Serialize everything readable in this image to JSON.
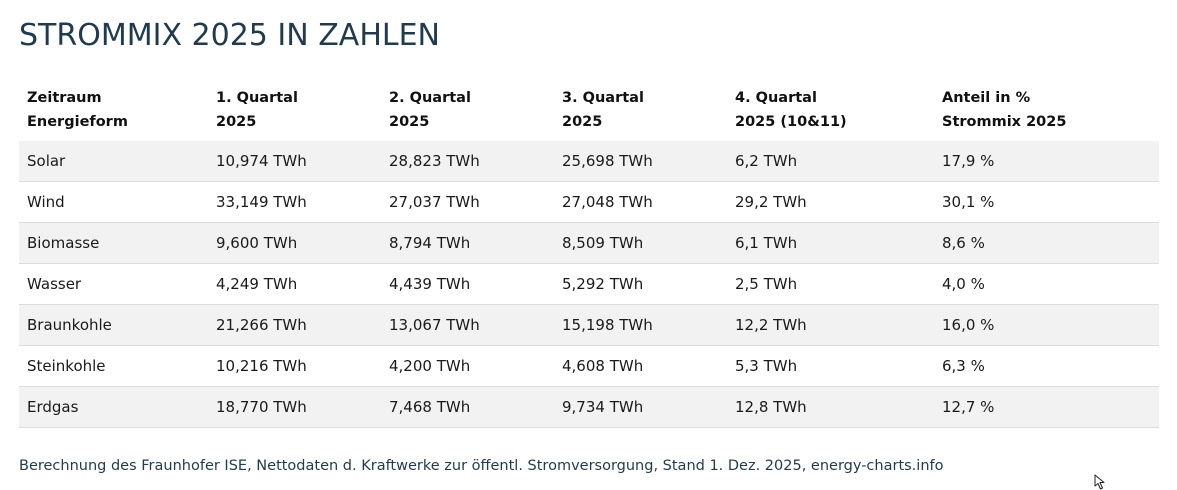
{
  "title": "STROMMIX 2025 IN ZAHLEN",
  "table": {
    "headers": [
      {
        "line1": "Zeitraum",
        "line2": "Energieform"
      },
      {
        "line1": "1. Quartal",
        "line2": "2025"
      },
      {
        "line1": "2. Quartal",
        "line2": "2025"
      },
      {
        "line1": "3. Quartal",
        "line2": "2025"
      },
      {
        "line1": "4. Quartal",
        "line2": "2025 (10&11)"
      },
      {
        "line1": "Anteil in %",
        "line2": "Strommix 2025"
      }
    ],
    "rows": [
      [
        "Solar",
        "10,974 TWh",
        "28,823 TWh",
        "25,698 TWh",
        "6,2 TWh",
        "17,9 %"
      ],
      [
        "Wind",
        "33,149 TWh",
        "27,037 TWh",
        "27,048 TWh",
        "29,2 TWh",
        "30,1 %"
      ],
      [
        "Biomasse",
        "9,600 TWh",
        "8,794 TWh",
        "8,509 TWh",
        "6,1 TWh",
        "8,6 %"
      ],
      [
        "Wasser",
        "4,249 TWh",
        "4,439 TWh",
        "5,292 TWh",
        "2,5 TWh",
        "4,0 %"
      ],
      [
        "Braunkohle",
        "21,266 TWh",
        "13,067 TWh",
        "15,198 TWh",
        "12,2 TWh",
        "16,0 %"
      ],
      [
        "Steinkohle",
        "10,216 TWh",
        "4,200 TWh",
        "4,608 TWh",
        "5,3 TWh",
        "6,3 %"
      ],
      [
        "Erdgas",
        "18,770 TWh",
        "7,468 TWh",
        "9,734 TWh",
        "12,8 TWh",
        "12,7 %"
      ]
    ]
  },
  "footnote": "Berechnung des Fraunhofer ISE, Nettodaten d. Kraftwerke zur öffentl. Stromversorgung, Stand 1. Dez. 2025, energy-charts.info",
  "colors": {
    "title": "#1f3b4d",
    "row_shade": "#f2f2f2",
    "row_border": "#dddddd"
  },
  "icons": {
    "cursor": "mouse-pointer-icon"
  }
}
